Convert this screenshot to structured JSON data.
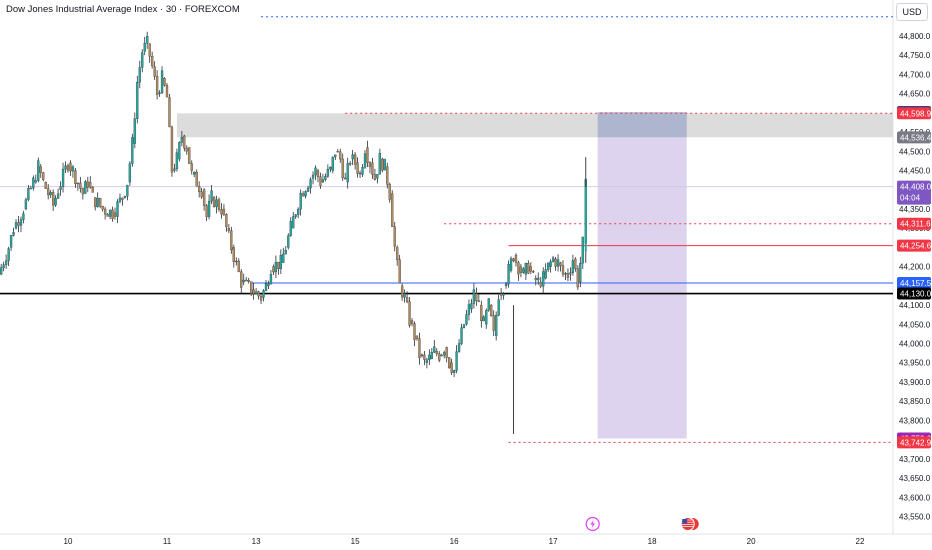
{
  "header": {
    "symbol_title": "Dow Jones Industrial Average Index · 30 · FOREXCOM",
    "currency": "USD"
  },
  "colors": {
    "up": "#26a69a",
    "down": "#b08a5a",
    "wick": "#2a2e39",
    "support_line": "#000000",
    "blue_line": "#2962ff",
    "red_line": "#f23645",
    "box_fill": "#d1c4e9",
    "gray_zone": "#dcdcdc"
  },
  "chart_data": {
    "type": "candlestick",
    "ylim": [
      43500,
      44900
    ],
    "y_ticks": [
      "44,800.0",
      "44,750.0",
      "44,700.0",
      "44,650.0",
      "44,550.0",
      "44,500.0",
      "44,450.0",
      "44,350.0",
      "44,300.0",
      "44,200.0",
      "44,100.0",
      "44,050.0",
      "44,000.0",
      "43,950.0",
      "43,900.0",
      "43,850.0",
      "43,800.0",
      "43,700.0",
      "43,650.0",
      "43,600.0",
      "43,550.0"
    ],
    "y_tick_values": [
      44800,
      44750,
      44700,
      44650,
      44550,
      44500,
      44450,
      44350,
      44300,
      44200,
      44100,
      44050,
      44000,
      43950,
      43900,
      43850,
      43800,
      43700,
      43650,
      43600,
      43550
    ],
    "x_ticks": [
      "10",
      "11",
      "13",
      "15",
      "16",
      "17",
      "18",
      "20",
      "22"
    ],
    "x_tick_positions": [
      0.5,
      10.5,
      19.5,
      29.5,
      39.5,
      49.5,
      59.5,
      69.5,
      80.5
    ],
    "x_range": [
      -6.5,
      84
    ],
    "ohlc_path": [
      [
        -6.5,
        44180
      ],
      [
        -5.5,
        44250
      ],
      [
        -5,
        44300
      ],
      [
        -4,
        44350
      ],
      [
        -3,
        44420
      ],
      [
        -2.5,
        44460
      ],
      [
        -2,
        44420
      ],
      [
        -1,
        44360
      ],
      [
        -0.5,
        44400
      ],
      [
        0.5,
        44470
      ],
      [
        1,
        44450
      ],
      [
        2,
        44390
      ],
      [
        2.5,
        44420
      ],
      [
        3,
        44380
      ],
      [
        4,
        44350
      ],
      [
        5,
        44340
      ],
      [
        6,
        44380
      ],
      [
        6.5,
        44420
      ],
      [
        7,
        44520
      ],
      [
        7.5,
        44680
      ],
      [
        8,
        44760
      ],
      [
        8.5,
        44780
      ],
      [
        9,
        44720
      ],
      [
        9.5,
        44650
      ],
      [
        10,
        44690
      ],
      [
        10.5,
        44640
      ],
      [
        11,
        44450
      ],
      [
        11.5,
        44480
      ],
      [
        12,
        44540
      ],
      [
        12.5,
        44510
      ],
      [
        13,
        44440
      ],
      [
        14,
        44400
      ],
      [
        14.5,
        44330
      ],
      [
        15,
        44380
      ],
      [
        16,
        44350
      ],
      [
        16.5,
        44300
      ],
      [
        17,
        44250
      ],
      [
        18,
        44160
      ],
      [
        19,
        44140
      ],
      [
        20,
        44120
      ],
      [
        20.5,
        44150
      ],
      [
        21,
        44200
      ],
      [
        22,
        44210
      ],
      [
        22.5,
        44250
      ],
      [
        23,
        44300
      ],
      [
        24,
        44390
      ],
      [
        25,
        44430
      ],
      [
        25.5,
        44450
      ],
      [
        26,
        44420
      ],
      [
        27,
        44450
      ],
      [
        27.5,
        44500
      ],
      [
        28,
        44480
      ],
      [
        28.5,
        44420
      ],
      [
        29,
        44480
      ],
      [
        29.5,
        44470
      ],
      [
        30,
        44440
      ],
      [
        30.5,
        44510
      ],
      [
        31,
        44470
      ],
      [
        31.5,
        44430
      ],
      [
        32,
        44480
      ],
      [
        32.5,
        44460
      ],
      [
        33,
        44390
      ],
      [
        33.5,
        44250
      ],
      [
        34,
        44150
      ],
      [
        34.5,
        44120
      ],
      [
        35,
        44060
      ],
      [
        35.5,
        44020
      ],
      [
        36,
        43970
      ],
      [
        36.5,
        43950
      ],
      [
        37,
        43960
      ],
      [
        37.5,
        43980
      ],
      [
        38,
        43970
      ],
      [
        38.5,
        43990
      ],
      [
        39,
        43950
      ],
      [
        39.5,
        43930
      ],
      [
        40,
        44000
      ],
      [
        40.5,
        44050
      ],
      [
        41,
        44090
      ],
      [
        41.5,
        44130
      ],
      [
        42,
        44100
      ],
      [
        42.5,
        44050
      ],
      [
        43,
        44100
      ],
      [
        43.5,
        44020
      ],
      [
        44,
        44130
      ],
      [
        44.5,
        44150
      ],
      [
        45,
        44190
      ],
      [
        45.5,
        44230
      ],
      [
        46,
        44200
      ],
      [
        46.5,
        44180
      ],
      [
        47,
        44200
      ],
      [
        47.5,
        44170
      ],
      [
        48,
        44160
      ],
      [
        48.5,
        44170
      ],
      [
        49,
        44200
      ],
      [
        49.5,
        44220
      ],
      [
        50,
        44210
      ],
      [
        50.5,
        44180
      ],
      [
        51,
        44180
      ],
      [
        51.5,
        44220
      ],
      [
        52,
        44160
      ],
      [
        52.5,
        44260
      ],
      [
        52.8,
        44408
      ]
    ],
    "current_price_label": "44,408.0",
    "countdown": "04:04",
    "price_tags": [
      {
        "label": "44,602.0",
        "value": 44602.0,
        "color": "#1a237e"
      },
      {
        "label": "44,598.9",
        "value": 44598.9,
        "color": "#f23645"
      },
      {
        "label": "44,536.4",
        "value": 44536.4,
        "color": "#787b86"
      },
      {
        "label": "44,311.6",
        "value": 44311.6,
        "color": "#f23645"
      },
      {
        "label": "44,254.6",
        "value": 44254.6,
        "color": "#f23645"
      },
      {
        "label": "44,157.5",
        "value": 44157.5,
        "color": "#2962ff"
      },
      {
        "label": "44,130.0",
        "value": 44130.0,
        "color": "#000000"
      },
      {
        "label": "43,753.0",
        "value": 43753.0,
        "color": "#9c27b0"
      },
      {
        "label": "43,742.9",
        "value": 43742.9,
        "color": "#f23645"
      }
    ],
    "horizontal_lines": [
      {
        "value": 44850,
        "style": "dotted",
        "color": "#2962ff",
        "x_from": 20,
        "x_to": 84
      },
      {
        "value": 44598.9,
        "style": "dotted",
        "color": "#f23645",
        "x_from": 28.5,
        "x_to": 84
      },
      {
        "value": 44311.6,
        "style": "dotted",
        "color": "#f23645",
        "x_from": 38.5,
        "x_to": 84
      },
      {
        "value": 44254.6,
        "style": "solid",
        "color": "#f23645",
        "x_from": 45,
        "x_to": 84
      },
      {
        "value": 44157.5,
        "style": "solid",
        "color": "#2962ff",
        "x_from": 19,
        "x_to": 84
      },
      {
        "value": 44130.0,
        "style": "solid",
        "color": "#000000",
        "x_from": -6.5,
        "x_to": 84
      },
      {
        "value": 43742.9,
        "style": "dotted",
        "color": "#f23645",
        "x_from": 45,
        "x_to": 84
      }
    ],
    "zones": [
      {
        "kind": "gray_supply",
        "y_top": 44598.9,
        "y_bottom": 44536.4,
        "x_from": 11.5,
        "x_to": 84
      },
      {
        "kind": "short_position_risk",
        "y_top": 44602.0,
        "y_bottom": 44536.4,
        "x_from": 54,
        "x_to": 63
      },
      {
        "kind": "short_position_target",
        "y_top": 44536.4,
        "y_bottom": 43753.0,
        "x_from": 54,
        "x_to": 63
      }
    ],
    "events": [
      {
        "name": "lightning-event-icon",
        "x": 53.5
      },
      {
        "name": "us-flag-event-icon",
        "x": 63.3
      }
    ]
  }
}
